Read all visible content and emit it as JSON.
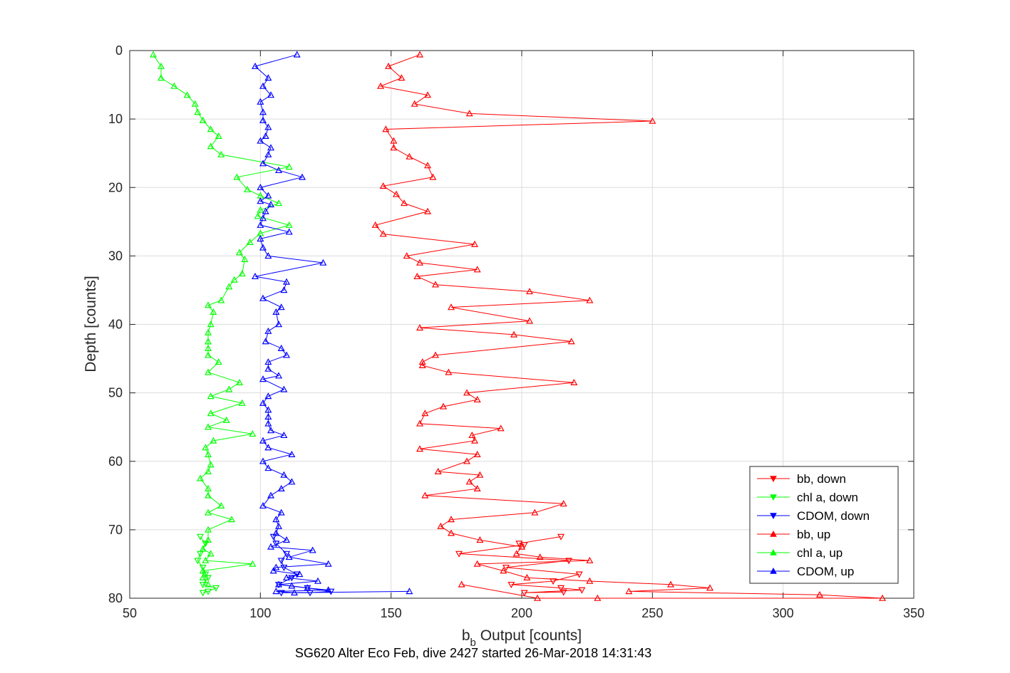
{
  "chart_data": {
    "type": "line",
    "title": "",
    "xlabel_main": "b",
    "xlabel_sub": "b",
    "xlabel_rest": " Output [counts]",
    "ylabel": "Depth [counts]",
    "caption": "SG620 Alter Eco Feb, dive 2427 started 26-Mar-2018 14:31:43",
    "xlim": [
      50,
      350
    ],
    "ylim": [
      0,
      80
    ],
    "y_reversed": true,
    "grid": true,
    "x_ticks": [
      "50",
      "100",
      "150",
      "200",
      "250",
      "300",
      "350"
    ],
    "y_ticks": [
      "0",
      "10",
      "20",
      "30",
      "40",
      "50",
      "60",
      "70",
      "80"
    ],
    "legend_position": "bottom-right",
    "series": [
      {
        "name": "bb, down",
        "color": "#ff0000",
        "marker": "triangle-down",
        "x": [
          215,
          199,
          201,
          176,
          218,
          194,
          222,
          212,
          196,
          215,
          223,
          201,
          216
        ],
        "y": [
          71,
          72,
          72.2,
          73.5,
          74.5,
          75.5,
          76.5,
          77.5,
          78,
          78.5,
          78.8,
          79.2,
          79.1
        ]
      },
      {
        "name": "chl a, down",
        "color": "#00ff00",
        "marker": "triangle-down",
        "x": [
          77,
          79,
          77,
          76,
          78,
          79,
          80,
          78,
          83,
          80,
          78
        ],
        "y": [
          71,
          72,
          73.5,
          74.5,
          75.5,
          76.5,
          77,
          78,
          78.5,
          79,
          79.2
        ]
      },
      {
        "name": "CDOM, down",
        "color": "#0000ff",
        "marker": "triangle-down",
        "x": [
          105,
          106,
          110,
          108,
          109,
          114,
          112,
          107,
          118,
          127,
          119,
          108
        ],
        "y": [
          71,
          72,
          73.5,
          74.5,
          75.5,
          76.5,
          77,
          78,
          78.5,
          79,
          79.2,
          79.2
        ]
      },
      {
        "name": "bb, up",
        "color": "#ff0000",
        "marker": "triangle-up",
        "x": [
          161,
          149,
          154,
          146,
          164,
          159,
          180,
          250,
          148,
          151,
          151,
          157,
          164,
          166,
          147,
          152,
          155,
          164,
          144,
          147,
          182,
          156,
          161,
          183,
          160,
          167,
          203,
          226,
          173,
          203,
          161,
          197,
          219,
          167,
          162,
          162,
          172,
          220,
          179,
          183,
          170,
          163,
          161,
          192,
          181,
          182,
          161,
          183,
          179,
          168,
          184,
          180,
          183,
          163,
          216,
          205,
          173,
          169,
          173,
          184,
          200,
          198,
          207,
          226,
          183,
          193,
          202,
          226,
          257,
          272,
          241,
          314,
          338,
          229,
          206,
          177
        ],
        "y": [
          0.6,
          2.3,
          4,
          5.2,
          6.5,
          7.8,
          9.2,
          10.3,
          11.5,
          13.2,
          14.2,
          15.5,
          16.8,
          18.5,
          19.8,
          21,
          22.3,
          23.5,
          25.5,
          26.8,
          28.3,
          30,
          31,
          32,
          33,
          34.2,
          35.2,
          36.5,
          37.5,
          39.5,
          40.5,
          41.5,
          42.5,
          44.5,
          45.5,
          46,
          47,
          48.5,
          50,
          51,
          52,
          53,
          54.5,
          55.2,
          56.2,
          57,
          58.2,
          59,
          60,
          61.5,
          62,
          63,
          64,
          65,
          66.2,
          67.5,
          68.5,
          69.5,
          70.5,
          71.5,
          72.5,
          73.5,
          74,
          74.5,
          75,
          76,
          77,
          77.5,
          78,
          78.5,
          79,
          79.5,
          80,
          80,
          80,
          78
        ]
      },
      {
        "name": "chl a, up",
        "color": "#00ff00",
        "marker": "triangle-up",
        "x": [
          59,
          62,
          62,
          67,
          72,
          75,
          76,
          78,
          81,
          84,
          81,
          85,
          111,
          91,
          95,
          100,
          107,
          100,
          99,
          111,
          100,
          96,
          92,
          94,
          93,
          90,
          88,
          85,
          80,
          82,
          81,
          80,
          80,
          80,
          80,
          84,
          80,
          92,
          88,
          81,
          93,
          81,
          87,
          80,
          97,
          82,
          79,
          80,
          81,
          80,
          77,
          80,
          80,
          85,
          80,
          89,
          80,
          80,
          78,
          81,
          79,
          97,
          78,
          78,
          80
        ],
        "y": [
          0.6,
          2.3,
          4,
          5.2,
          6.5,
          7.8,
          9,
          10.2,
          11.5,
          12.5,
          14,
          15.2,
          17,
          18.5,
          20.3,
          21.2,
          22.3,
          23.3,
          24.2,
          25.5,
          26.7,
          28,
          29.5,
          30.5,
          32.6,
          33.5,
          34.5,
          36.5,
          37.2,
          38.2,
          40,
          41.2,
          42.5,
          43.5,
          44.5,
          45.5,
          47,
          48.5,
          49.5,
          50.5,
          51.5,
          53,
          54,
          55,
          56,
          57,
          58,
          59,
          60.5,
          61.5,
          62.5,
          64,
          65,
          66.5,
          67.5,
          68.5,
          70,
          71.5,
          72.8,
          73.5,
          74.5,
          75,
          76,
          77,
          78
        ]
      },
      {
        "name": "CDOM, up",
        "color": "#0000ff",
        "marker": "triangle-up",
        "x": [
          114,
          98,
          103,
          101,
          104,
          100,
          101,
          101,
          103,
          102,
          100,
          104,
          103,
          101,
          107,
          116,
          100,
          103,
          100,
          104,
          102,
          101,
          100,
          111,
          100,
          101,
          103,
          124,
          98,
          110,
          109,
          101,
          108,
          106,
          107,
          103,
          102,
          108,
          110,
          103,
          103,
          107,
          101,
          109,
          103,
          101,
          103,
          103,
          103,
          104,
          109,
          101,
          103,
          112,
          101,
          103,
          109,
          112,
          108,
          104,
          101,
          108,
          106,
          107,
          106,
          110,
          104,
          120,
          111,
          126,
          106,
          105,
          115,
          110,
          122,
          107,
          112,
          118,
          126,
          106,
          113,
          157
        ],
        "y": [
          0.6,
          2.3,
          4,
          5.2,
          6.5,
          7.5,
          9,
          10.2,
          11.2,
          12.5,
          13.2,
          14.2,
          15.2,
          16.5,
          17.5,
          18.5,
          20,
          21.2,
          22,
          22.5,
          23.5,
          24.5,
          25.5,
          26.5,
          27.5,
          28.8,
          30,
          31,
          33,
          33.8,
          35,
          36.2,
          37.5,
          38.2,
          40,
          41,
          42.5,
          43.5,
          44.5,
          45.5,
          46.5,
          47.5,
          48,
          49.5,
          50.5,
          51.5,
          52.5,
          53.5,
          54.5,
          55.5,
          56.2,
          57,
          58,
          59,
          60,
          61,
          62,
          63,
          64,
          65,
          66.5,
          67.5,
          68.5,
          69.5,
          70.5,
          71.5,
          72.5,
          73,
          74,
          75,
          75.5,
          76,
          76.5,
          77,
          77.5,
          78,
          78.2,
          78.5,
          78.8,
          79,
          79.2,
          79
        ]
      }
    ]
  }
}
